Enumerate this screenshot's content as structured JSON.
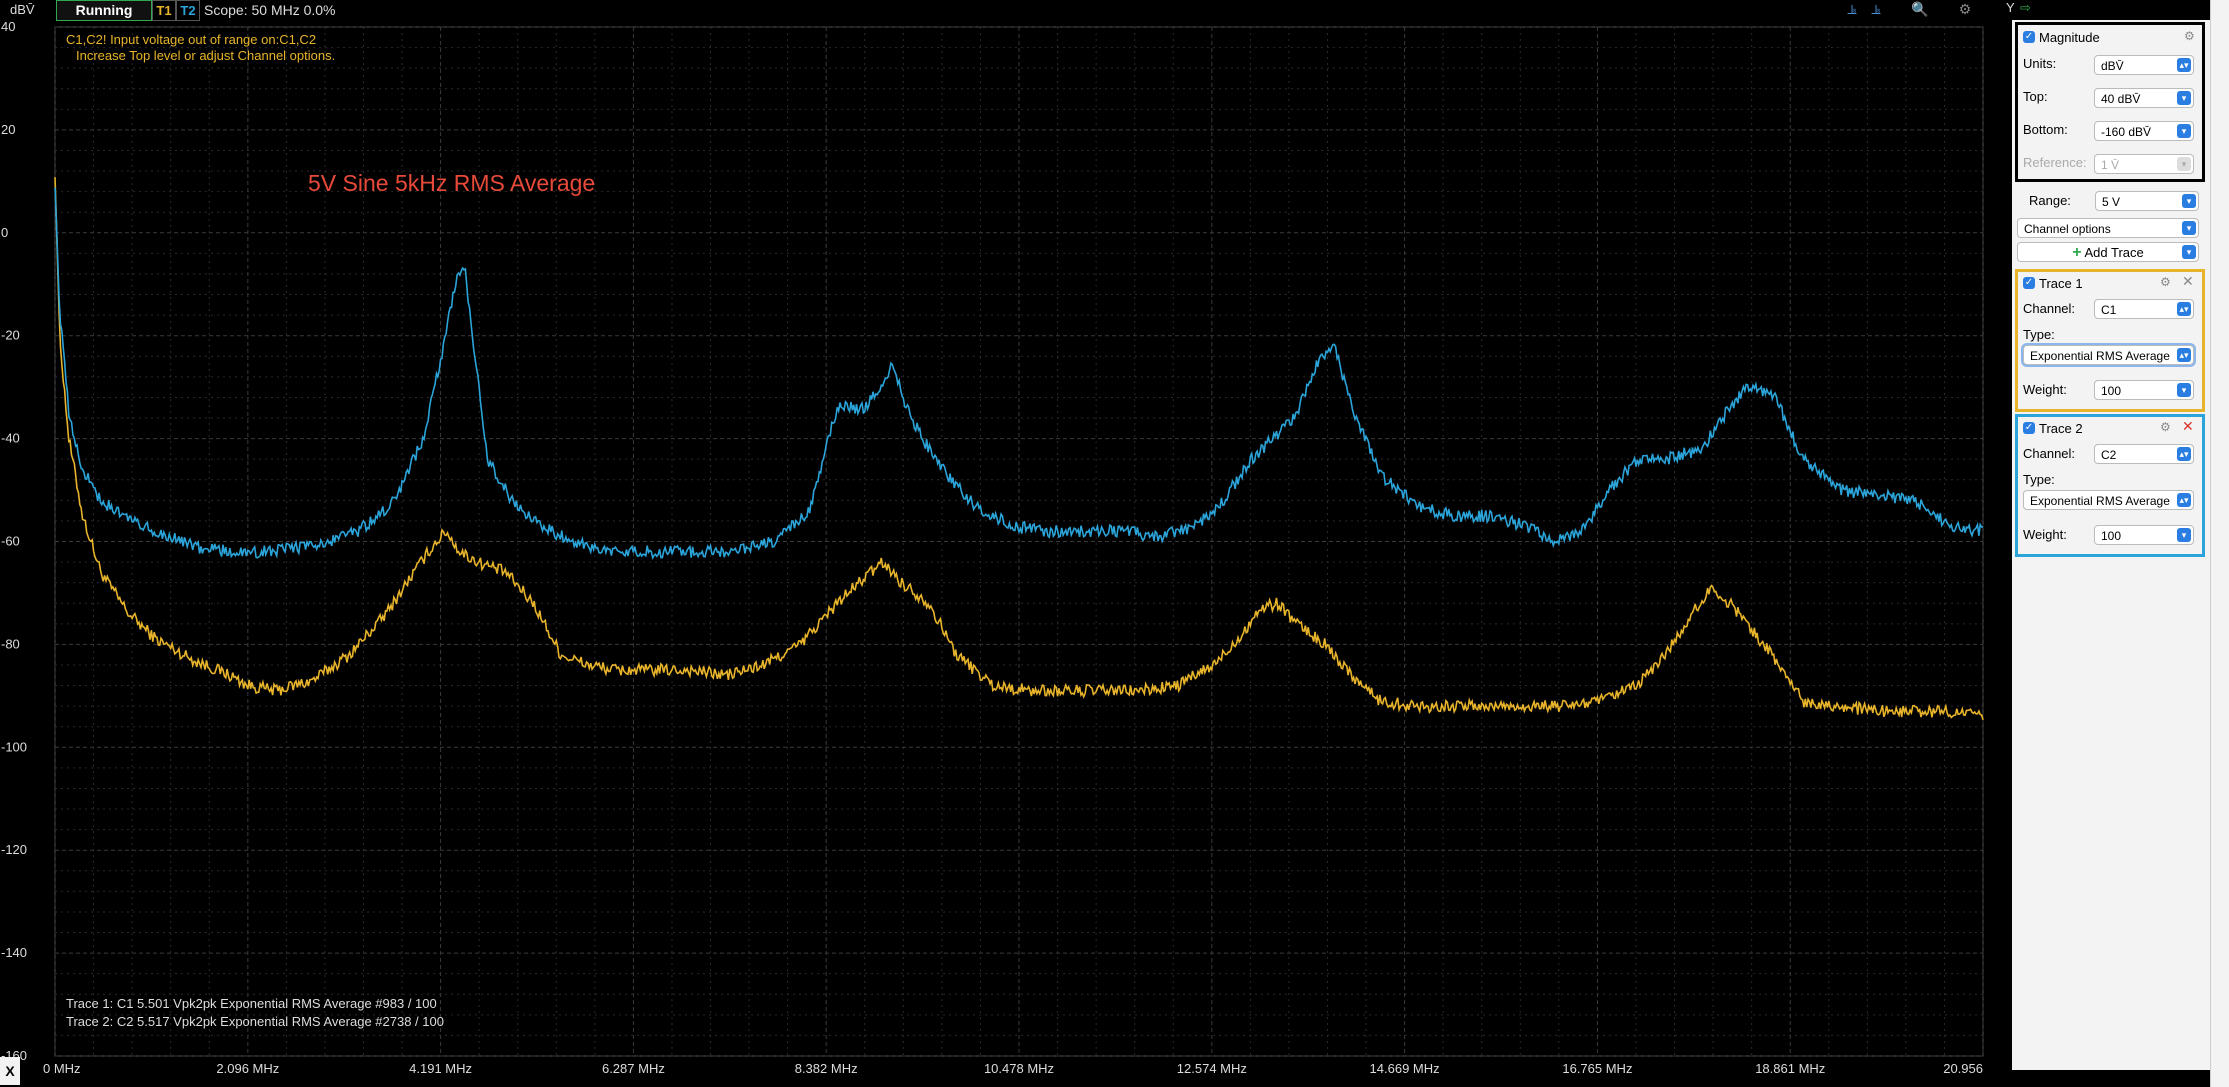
{
  "toolbar": {
    "unit": "dBV̄",
    "status": "Running",
    "t1": "T1",
    "t2": "T2",
    "scope_info": "Scope: 50 MHz 0.0%",
    "y_label": "Y"
  },
  "warning": {
    "line1": "C1,C2! Input voltage out of range on:C1,C2",
    "line2": "Increase Top level or adjust Channel options."
  },
  "annotation": "5V Sine  5kHz RMS Average",
  "trace_status": {
    "line1": "Trace 1: C1 5.501 Vpk2pk Exponential RMS Average #983 / 100",
    "line2": "Trace 2: C2 5.517 Vpk2pk Exponential RMS Average #2738 / 100"
  },
  "corner_button": "X",
  "panel": {
    "magnitude": {
      "title": "Magnitude",
      "units_label": "Units:",
      "units_value": "dBV̄",
      "top_label": "Top:",
      "top_value": "40 dBV̄",
      "bottom_label": "Bottom:",
      "bottom_value": "-160 dBV̄",
      "reference_label": "Reference:",
      "reference_value": "1 V̄"
    },
    "range_label": "Range:",
    "range_value": "5 V",
    "channel_options": "Channel options",
    "add_trace": "Add Trace",
    "trace1": {
      "title": "Trace 1",
      "channel_label": "Channel:",
      "channel_value": "C1",
      "type_label": "Type:",
      "type_value": "Exponential RMS Average",
      "weight_label": "Weight:",
      "weight_value": "100",
      "color": "#e8b42b"
    },
    "trace2": {
      "title": "Trace 2",
      "channel_label": "Channel:",
      "channel_value": "C2",
      "type_label": "Type:",
      "type_value": "Exponential RMS Average",
      "weight_label": "Weight:",
      "weight_value": "100",
      "color": "#2ba4d9"
    }
  },
  "chart_data": {
    "type": "line",
    "xlabel": "",
    "ylabel": "dBV̄",
    "xlim": [
      0,
      20.956
    ],
    "ylim": [
      -160,
      40
    ],
    "x_ticks": [
      "0 MHz",
      "2.096 MHz",
      "4.191 MHz",
      "6.287 MHz",
      "8.382 MHz",
      "10.478 MHz",
      "12.574 MHz",
      "14.669 MHz",
      "16.765 MHz",
      "18.861 MHz",
      "20.956"
    ],
    "x_tick_values": [
      0,
      2.096,
      4.191,
      6.287,
      8.382,
      10.478,
      12.574,
      14.669,
      16.765,
      18.861,
      20.956
    ],
    "y_ticks": [
      "40",
      "20",
      "0",
      "-20",
      "-40",
      "-60",
      "-80",
      "-100",
      "-120",
      "-140",
      "-160"
    ],
    "y_tick_values": [
      40,
      20,
      0,
      -20,
      -40,
      -60,
      -80,
      -100,
      -120,
      -140,
      -160
    ],
    "grid": true,
    "series": [
      {
        "name": "Trace 1",
        "color": "#e8b42b",
        "x": [
          0,
          0.05,
          0.15,
          0.3,
          0.5,
          0.8,
          1.1,
          1.5,
          1.9,
          2.1,
          2.4,
          2.8,
          3.2,
          3.6,
          3.9,
          4.1,
          4.25,
          4.4,
          4.6,
          4.9,
          5.2,
          5.5,
          5.8,
          6.1,
          6.5,
          6.9,
          7.3,
          7.7,
          8.1,
          8.5,
          8.8,
          9.0,
          9.2,
          9.5,
          9.8,
          10.2,
          10.6,
          11.0,
          11.4,
          11.8,
          12.2,
          12.6,
          12.9,
          13.1,
          13.3,
          13.5,
          13.8,
          14.1,
          14.4,
          14.8,
          15.2,
          15.6,
          16.0,
          16.4,
          16.8,
          17.2,
          17.5,
          17.8,
          18.0,
          18.2,
          18.4,
          18.7,
          19.0,
          19.4,
          19.8,
          20.2,
          20.6,
          20.956
        ],
        "y": [
          12,
          -20,
          -40,
          -55,
          -66,
          -74,
          -79,
          -83,
          -86,
          -88,
          -89,
          -87,
          -82,
          -74,
          -66,
          -61,
          -58,
          -62,
          -64,
          -66,
          -72,
          -82,
          -84,
          -85,
          -85,
          -85,
          -86,
          -84,
          -80,
          -72,
          -67,
          -64,
          -68,
          -72,
          -82,
          -88,
          -89,
          -89,
          -89,
          -89,
          -88,
          -84,
          -78,
          -73,
          -72,
          -76,
          -80,
          -86,
          -91,
          -92,
          -92,
          -92,
          -92,
          -92,
          -91,
          -88,
          -82,
          -74,
          -69,
          -72,
          -76,
          -83,
          -91,
          -92,
          -93,
          -93,
          -93,
          -94
        ]
      },
      {
        "name": "Trace 2",
        "color": "#2ba4d9",
        "x": [
          0,
          0.05,
          0.15,
          0.3,
          0.5,
          0.8,
          1.1,
          1.5,
          1.9,
          2.3,
          2.8,
          3.3,
          3.7,
          4.0,
          4.2,
          4.35,
          4.45,
          4.55,
          4.7,
          5.0,
          5.4,
          5.8,
          6.2,
          6.6,
          7.0,
          7.4,
          7.8,
          8.2,
          8.5,
          8.8,
          9.0,
          9.1,
          9.3,
          9.6,
          10.0,
          10.4,
          10.8,
          11.2,
          11.6,
          12.0,
          12.4,
          12.7,
          13.0,
          13.3,
          13.5,
          13.7,
          13.9,
          14.1,
          14.4,
          14.8,
          15.2,
          15.6,
          16.0,
          16.3,
          16.6,
          16.9,
          17.2,
          17.5,
          17.9,
          18.2,
          18.4,
          18.7,
          19.0,
          19.4,
          19.8,
          20.2,
          20.6,
          20.956
        ],
        "y": [
          10,
          -15,
          -35,
          -46,
          -52,
          -56,
          -58,
          -61,
          -62,
          -62,
          -61,
          -58,
          -52,
          -40,
          -24,
          -10,
          -6,
          -22,
          -44,
          -53,
          -58,
          -61,
          -62,
          -62,
          -62,
          -62,
          -60,
          -54,
          -34,
          -34,
          -29,
          -26,
          -36,
          -45,
          -53,
          -57,
          -58,
          -58,
          -58,
          -59,
          -57,
          -52,
          -44,
          -39,
          -35,
          -26,
          -22,
          -34,
          -47,
          -53,
          -55,
          -55,
          -57,
          -60,
          -58,
          -50,
          -44,
          -44,
          -42,
          -34,
          -30,
          -32,
          -44,
          -50,
          -51,
          -52,
          -57,
          -58
        ]
      }
    ]
  }
}
